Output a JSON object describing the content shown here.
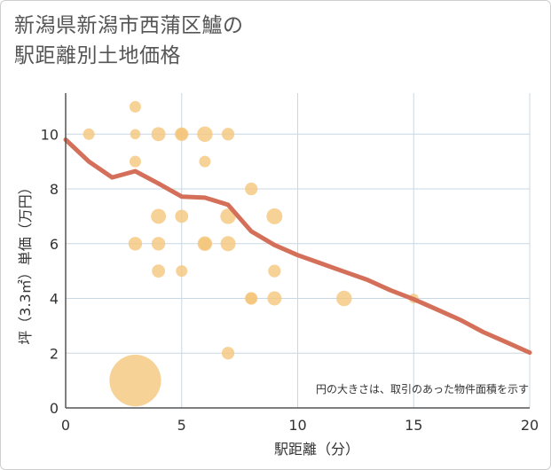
{
  "title_lines": [
    "新潟県新潟市西蒲区鱸の",
    "駅距離別土地価格"
  ],
  "note": "円の大きさは、取引のあった物件面積を示す",
  "colors": {
    "bubble": "#f5c57a",
    "line": "#d4705a",
    "grid": "#c9d7e3",
    "axis": "#555555"
  },
  "chart_data": {
    "type": "scatter",
    "title": "新潟県新潟市西蒲区鱸の駅距離別土地価格",
    "xlabel": "駅距離（分）",
    "ylabel": "坪（3.3㎡）単価（万円）",
    "xlim": [
      0,
      20
    ],
    "ylim": [
      0,
      11.5
    ],
    "xticks": [
      0,
      5,
      10,
      15,
      20
    ],
    "yticks": [
      0,
      2,
      4,
      6,
      8,
      10
    ],
    "grid": true,
    "points": [
      {
        "x": 1,
        "y": 10,
        "size": 1
      },
      {
        "x": 3,
        "y": 11,
        "size": 1
      },
      {
        "x": 3,
        "y": 10,
        "size": 0.8
      },
      {
        "x": 3,
        "y": 9,
        "size": 1
      },
      {
        "x": 3,
        "y": 6,
        "size": 1.4
      },
      {
        "x": 3,
        "y": 1,
        "size": 20
      },
      {
        "x": 4,
        "y": 10,
        "size": 1.5
      },
      {
        "x": 4,
        "y": 7,
        "size": 1.7
      },
      {
        "x": 4,
        "y": 6,
        "size": 1.4
      },
      {
        "x": 4,
        "y": 5,
        "size": 1.3
      },
      {
        "x": 5,
        "y": 10,
        "size": 1.4
      },
      {
        "x": 5,
        "y": 10,
        "size": 1
      },
      {
        "x": 5,
        "y": 7,
        "size": 1.3
      },
      {
        "x": 5,
        "y": 5,
        "size": 1
      },
      {
        "x": 6,
        "y": 10,
        "size": 1.8
      },
      {
        "x": 6,
        "y": 9,
        "size": 1
      },
      {
        "x": 6,
        "y": 6,
        "size": 1.6
      },
      {
        "x": 6,
        "y": 6,
        "size": 1.2
      },
      {
        "x": 7,
        "y": 10,
        "size": 1.2
      },
      {
        "x": 7,
        "y": 7,
        "size": 1.8
      },
      {
        "x": 7,
        "y": 6,
        "size": 1.7
      },
      {
        "x": 7,
        "y": 2,
        "size": 1.2
      },
      {
        "x": 8,
        "y": 8,
        "size": 1.2
      },
      {
        "x": 8,
        "y": 4,
        "size": 1.2
      },
      {
        "x": 8,
        "y": 4,
        "size": 1
      },
      {
        "x": 9,
        "y": 7,
        "size": 1.9
      },
      {
        "x": 9,
        "y": 5,
        "size": 1.2
      },
      {
        "x": 9,
        "y": 4,
        "size": 1.5
      },
      {
        "x": 12,
        "y": 4,
        "size": 1.8
      },
      {
        "x": 15,
        "y": 4,
        "size": 0.7
      }
    ],
    "trend": {
      "x": [
        0,
        1,
        2,
        3,
        4,
        5,
        6,
        7,
        8,
        9,
        10,
        11,
        12,
        13,
        14,
        15,
        16,
        17,
        18,
        19,
        20
      ],
      "y": [
        9.8,
        9.0,
        8.42,
        8.65,
        8.2,
        7.72,
        7.68,
        7.42,
        6.45,
        5.95,
        5.58,
        5.28,
        4.98,
        4.68,
        4.3,
        3.97,
        3.6,
        3.22,
        2.77,
        2.4,
        2.02
      ]
    }
  }
}
